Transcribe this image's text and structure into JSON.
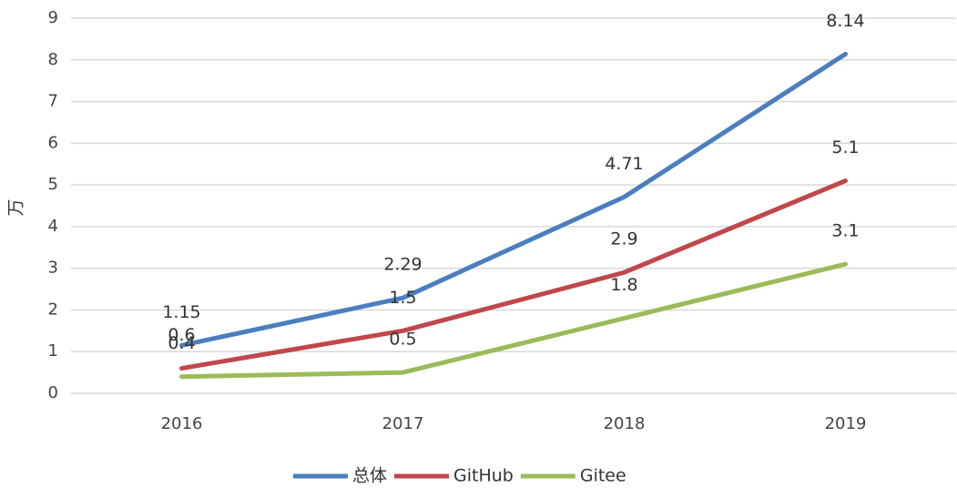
{
  "chart_data": {
    "type": "line",
    "y_label": "万",
    "categories": [
      "2016",
      "2017",
      "2018",
      "2019"
    ],
    "series": [
      {
        "name": "总体",
        "color": "#4a7ebf",
        "values": [
          1.15,
          2.29,
          4.71,
          8.14
        ]
      },
      {
        "name": "GitHub",
        "color": "#c0474a",
        "values": [
          0.6,
          1.5,
          2.9,
          5.1
        ]
      },
      {
        "name": "Gitee",
        "color": "#9bbb59",
        "values": [
          0.4,
          0.5,
          1.8,
          3.1
        ]
      }
    ],
    "ylim": [
      0,
      9
    ],
    "yticks": [
      0,
      1,
      2,
      3,
      4,
      5,
      6,
      7,
      8,
      9
    ],
    "grid": true,
    "legend": "bottom"
  }
}
